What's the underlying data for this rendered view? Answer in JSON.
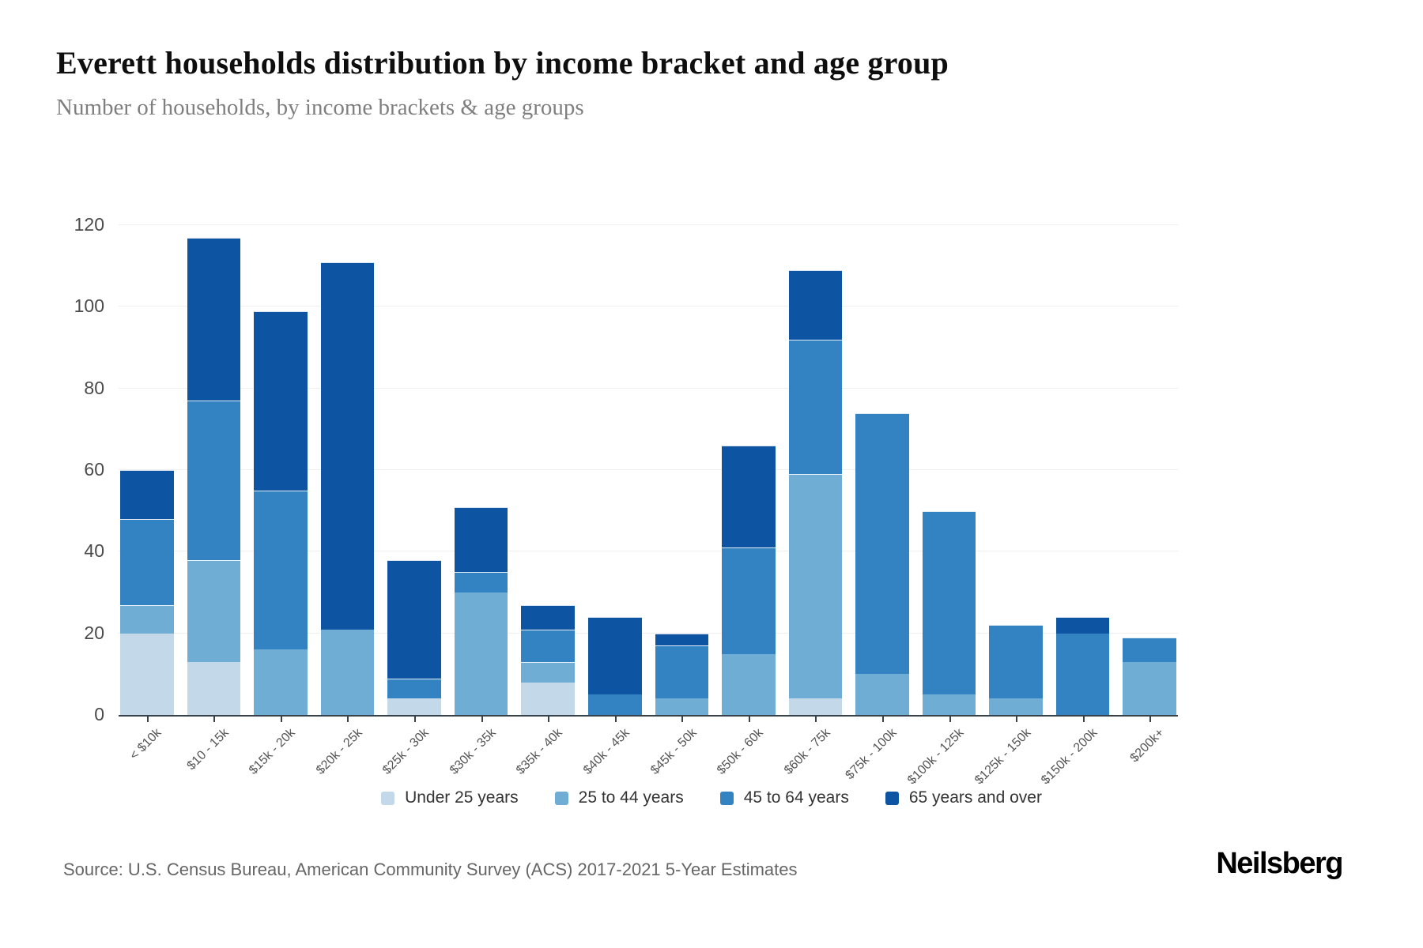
{
  "header": {
    "title": "Everett households distribution by income bracket and age group",
    "subtitle": "Number of households, by income brackets & age groups"
  },
  "footer": {
    "source": "Source: U.S. Census Bureau, American Community Survey (ACS) 2017-2021 5-Year Estimates",
    "brand": "Neilsberg"
  },
  "colors": {
    "axis": "#37424a",
    "grid": "#efefef",
    "tick_text": "#4a4a4a",
    "x_text": "#555555",
    "legend_text": "#333333"
  },
  "chart_data": {
    "type": "bar",
    "stacked": true,
    "title": "Everett households distribution by income bracket and age group",
    "xlabel": "",
    "ylabel": "Number of households",
    "ylim": [
      0,
      120
    ],
    "yticks": [
      0,
      20,
      40,
      60,
      80,
      100,
      120
    ],
    "grid": true,
    "legend_position": "bottom",
    "categories": [
      "< $10k",
      "$10 - 15k",
      "$15k - 20k",
      "$20k - 25k",
      "$25k - 30k",
      "$30k - 35k",
      "$35k - 40k",
      "$40k - 45k",
      "$45k - 50k",
      "$50k - 60k",
      "$60k - 75k",
      "$75k - 100k",
      "$100k - 125k",
      "$125k - 150k",
      "$150k - 200k",
      "$200k+"
    ],
    "series": [
      {
        "name": "Under 25 years",
        "color": "#c3d9ea",
        "values": [
          20,
          13,
          0,
          0,
          4,
          0,
          8,
          0,
          0,
          0,
          4,
          0,
          0,
          0,
          0,
          0
        ]
      },
      {
        "name": "25 to 44 years",
        "color": "#6fadd5",
        "values": [
          7,
          25,
          16,
          21,
          0,
          30,
          5,
          0,
          4,
          15,
          55,
          10,
          5,
          4,
          0,
          13
        ]
      },
      {
        "name": "45 to 64 years",
        "color": "#3382c2",
        "values": [
          21,
          39,
          39,
          0,
          5,
          5,
          8,
          5,
          13,
          26,
          33,
          64,
          45,
          18,
          20,
          6
        ]
      },
      {
        "name": "65 years and over",
        "color": "#0d55a2",
        "values": [
          12,
          40,
          44,
          90,
          29,
          16,
          6,
          19,
          3,
          25,
          17,
          0,
          0,
          0,
          4,
          0
        ]
      }
    ],
    "totals": [
      60,
      117,
      99,
      111,
      38,
      51,
      27,
      24,
      20,
      66,
      109,
      74,
      50,
      22,
      24,
      19
    ]
  }
}
